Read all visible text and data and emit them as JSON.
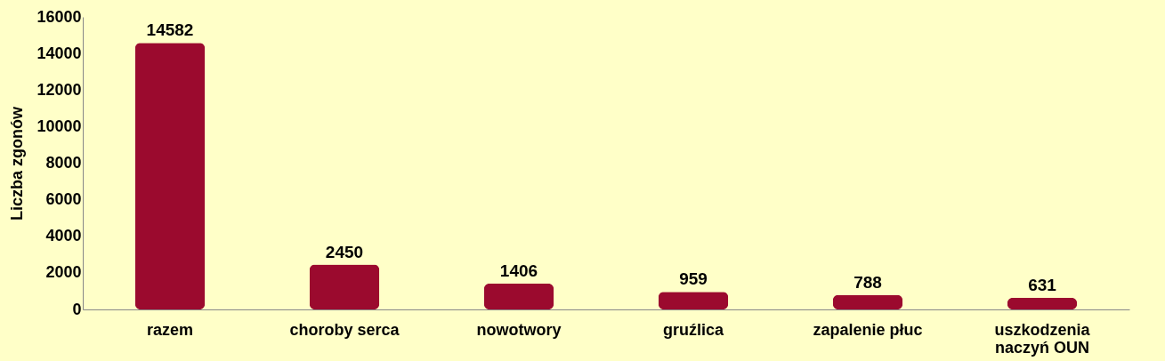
{
  "chart_data": {
    "type": "bar",
    "categories": [
      "razem",
      "choroby serca",
      "nowotwory",
      "gruźlica",
      "zapalenie płuc",
      "uszkodzenia naczyń OUN"
    ],
    "values": [
      14582,
      2450,
      1406,
      959,
      788,
      631
    ],
    "color": "#9b0a2e",
    "ylabel": "Liczba zgonów",
    "ylim": [
      0,
      16000
    ],
    "yticks": [
      0,
      2000,
      4000,
      6000,
      8000,
      10000,
      12000,
      14000,
      16000
    ],
    "data_labels": true,
    "grid": false
  }
}
